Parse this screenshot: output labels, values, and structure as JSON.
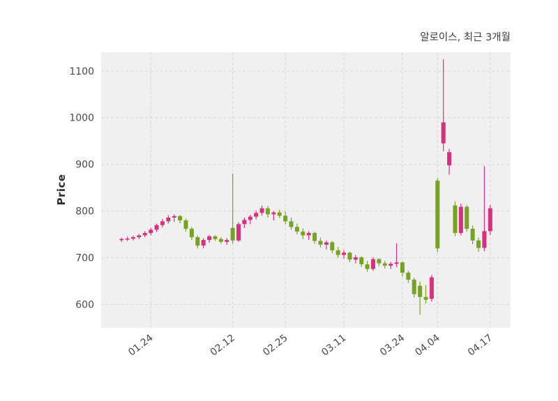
{
  "chart_data": {
    "type": "candlestick",
    "title": "알로이스, 최근 3개월",
    "ylabel": "Price",
    "xlabel": "",
    "ylim": [
      550,
      1140
    ],
    "yticks": [
      600,
      700,
      800,
      900,
      1000,
      1100
    ],
    "xticks": [
      "01.24",
      "02.12",
      "02.25",
      "03.11",
      "03.24",
      "04.04",
      "04.17"
    ],
    "grid": "dashed",
    "plot_bg": "#f0f0f0",
    "grid_color": "#d9d9d9",
    "tick_color": "#4a4a4a",
    "up_color": "#d6307f",
    "down_color": "#77a324",
    "columns": [
      "date",
      "open",
      "high",
      "low",
      "close"
    ],
    "candles": [
      [
        "01.17",
        738,
        743,
        734,
        740
      ],
      [
        "01.18",
        740,
        745,
        736,
        741
      ],
      [
        "01.19",
        741,
        747,
        737,
        744
      ],
      [
        "01.20",
        744,
        751,
        740,
        748
      ],
      [
        "01.23",
        748,
        757,
        744,
        753
      ],
      [
        "01.24",
        753,
        764,
        748,
        760
      ],
      [
        "01.25",
        760,
        773,
        755,
        770
      ],
      [
        "01.26",
        770,
        783,
        765,
        778
      ],
      [
        "01.27",
        778,
        791,
        773,
        786
      ],
      [
        "01.30",
        786,
        793,
        777,
        789
      ],
      [
        "01.31",
        789,
        792,
        774,
        780
      ],
      [
        "02.01",
        780,
        784,
        756,
        762
      ],
      [
        "02.02",
        762,
        766,
        738,
        744
      ],
      [
        "02.03",
        744,
        748,
        720,
        726
      ],
      [
        "02.06",
        726,
        742,
        720,
        738
      ],
      [
        "02.07",
        738,
        749,
        732,
        746
      ],
      [
        "02.08",
        746,
        748,
        736,
        740
      ],
      [
        "02.09",
        740,
        744,
        730,
        734
      ],
      [
        "02.10",
        734,
        742,
        728,
        738
      ],
      [
        "02.12",
        764,
        880,
        730,
        737
      ],
      [
        "02.13",
        737,
        776,
        734,
        772
      ],
      [
        "02.14",
        772,
        786,
        764,
        781
      ],
      [
        "02.15",
        781,
        792,
        772,
        788
      ],
      [
        "02.16",
        788,
        801,
        782,
        796
      ],
      [
        "02.17",
        796,
        812,
        790,
        806
      ],
      [
        "02.20",
        806,
        811,
        786,
        793
      ],
      [
        "02.21",
        793,
        800,
        780,
        797
      ],
      [
        "02.22",
        797,
        803,
        785,
        790
      ],
      [
        "02.25",
        790,
        799,
        772,
        778
      ],
      [
        "02.27",
        778,
        786,
        760,
        766
      ],
      [
        "02.28",
        766,
        773,
        750,
        756
      ],
      [
        "03.02",
        756,
        763,
        740,
        748
      ],
      [
        "03.03",
        748,
        757,
        738,
        753
      ],
      [
        "03.06",
        753,
        756,
        730,
        736
      ],
      [
        "03.07",
        736,
        743,
        722,
        728
      ],
      [
        "03.08",
        728,
        737,
        718,
        733
      ],
      [
        "03.09",
        733,
        736,
        710,
        716
      ],
      [
        "03.10",
        716,
        723,
        700,
        706
      ],
      [
        "03.11",
        706,
        716,
        698,
        711
      ],
      [
        "03.13",
        711,
        713,
        690,
        696
      ],
      [
        "03.14",
        696,
        706,
        688,
        701
      ],
      [
        "03.15",
        701,
        703,
        680,
        686
      ],
      [
        "03.16",
        686,
        693,
        670,
        676
      ],
      [
        "03.17",
        676,
        701,
        672,
        697
      ],
      [
        "03.20",
        697,
        699,
        682,
        688
      ],
      [
        "03.21",
        688,
        693,
        677,
        683
      ],
      [
        "03.22",
        683,
        691,
        676,
        687
      ],
      [
        "03.23",
        687,
        731,
        680,
        690
      ],
      [
        "03.24",
        690,
        692,
        660,
        668
      ],
      [
        "03.27",
        668,
        672,
        646,
        653
      ],
      [
        "03.28",
        653,
        657,
        615,
        622
      ],
      [
        "03.29",
        640,
        649,
        578,
        616
      ],
      [
        "03.30",
        616,
        641,
        602,
        610
      ],
      [
        "03.31",
        612,
        663,
        606,
        658
      ],
      [
        "04.04",
        865,
        871,
        712,
        720
      ],
      [
        "04.05",
        945,
        1125,
        928,
        990
      ],
      [
        "04.06",
        898,
        933,
        878,
        926
      ],
      [
        "04.07",
        812,
        821,
        746,
        753
      ],
      [
        "04.10",
        753,
        816,
        748,
        809
      ],
      [
        "04.11",
        809,
        813,
        756,
        762
      ],
      [
        "04.12",
        762,
        769,
        729,
        737
      ],
      [
        "04.13",
        737,
        743,
        713,
        721
      ],
      [
        "04.14",
        721,
        896,
        714,
        757
      ],
      [
        "04.17",
        757,
        813,
        749,
        806
      ]
    ]
  }
}
